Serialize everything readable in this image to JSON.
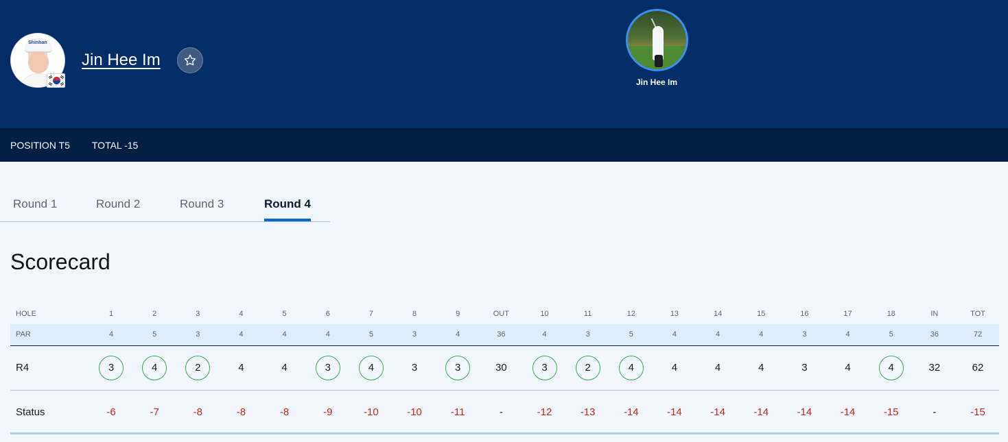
{
  "player": {
    "name": "Jin Hee Im",
    "cap_text": "Shinhan",
    "photo_caption": "Jin Hee Im",
    "favorite_icon": "star-outline-icon",
    "flag": "south-korea-flag"
  },
  "stats": {
    "position": "POSITION T5",
    "total": "TOTAL -15"
  },
  "tabs": [
    "Round 1",
    "Round 2",
    "Round 3",
    "Round 4"
  ],
  "active_tab": "Round 4",
  "title": "Scorecard",
  "scorecard": {
    "columns": [
      "1",
      "2",
      "3",
      "4",
      "5",
      "6",
      "7",
      "8",
      "9",
      "OUT",
      "10",
      "11",
      "12",
      "13",
      "14",
      "15",
      "16",
      "17",
      "18",
      "IN",
      "TOT"
    ],
    "hole_label": "HOLE",
    "par_label": "PAR",
    "par": [
      "4",
      "5",
      "3",
      "4",
      "4",
      "4",
      "5",
      "3",
      "4",
      "36",
      "4",
      "3",
      "5",
      "4",
      "4",
      "4",
      "3",
      "4",
      "5",
      "36",
      "72"
    ],
    "round_label": "R4",
    "scores": [
      "3",
      "4",
      "2",
      "4",
      "4",
      "3",
      "4",
      "3",
      "3",
      "30",
      "3",
      "2",
      "4",
      "4",
      "4",
      "4",
      "3",
      "4",
      "4",
      "32",
      "62"
    ],
    "under_par": [
      true,
      true,
      true,
      false,
      false,
      true,
      true,
      false,
      true,
      false,
      true,
      true,
      true,
      false,
      false,
      false,
      false,
      false,
      true,
      false,
      false
    ],
    "status_label": "Status",
    "status": [
      "-6",
      "-7",
      "-8",
      "-8",
      "-8",
      "-9",
      "-10",
      "-10",
      "-11",
      "-",
      "-12",
      "-13",
      "-14",
      "-14",
      "-14",
      "-14",
      "-14",
      "-14",
      "-15",
      "-",
      "-15"
    ]
  },
  "colors": {
    "header_bg": "#032d66",
    "stats_bg": "#011f45",
    "accent": "#1065c8",
    "birdie_ring": "#3fa64d",
    "under_par_text": "#c0281c"
  }
}
